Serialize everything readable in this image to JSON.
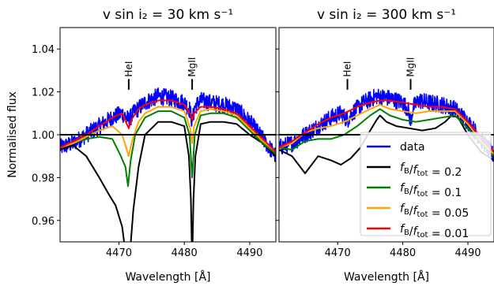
{
  "figure": {
    "ylabel": "Normalised flux",
    "xlabel": "Wavelength [Å]",
    "legend_placement": "lower-right"
  },
  "chart_data": [
    {
      "type": "line",
      "title": "v sin i₂ = 30 km s⁻¹",
      "xlabel": "Wavelength [Å]",
      "ylabel": "Normalised flux",
      "xlim": [
        4461,
        4494
      ],
      "ylim": [
        0.95,
        1.05
      ],
      "xticks": [
        4470,
        4480,
        4490
      ],
      "yticks": [
        0.96,
        0.98,
        1.0,
        1.02,
        1.04
      ],
      "reference_line": 1.0,
      "annotations": [
        {
          "text": "HeI",
          "x": 4471.5
        },
        {
          "text": "MgII",
          "x": 4481.2
        }
      ],
      "series": [
        {
          "name": "data",
          "color": "#0000ff",
          "x": [
            4461,
            4463,
            4465,
            4467,
            4469,
            4470.5,
            4471.5,
            4472.5,
            4474,
            4476,
            4478,
            4480,
            4480.8,
            4481.2,
            4481.6,
            4482.5,
            4484,
            4486,
            4488,
            4490,
            4492,
            4494
          ],
          "y": [
            0.994,
            0.996,
            1.0,
            1.004,
            1.008,
            1.01,
            1.007,
            1.011,
            1.015,
            1.018,
            1.017,
            1.015,
            1.012,
            1.006,
            1.013,
            1.016,
            1.015,
            1.014,
            1.012,
            1.006,
            0.998,
            0.99
          ]
        },
        {
          "name": "f_B/f_tot = 0.2",
          "color": "#000000",
          "x": [
            4461,
            4463,
            4465,
            4467,
            4468.5,
            4469.5,
            4470.5,
            4471,
            4471.3,
            4471.7,
            4472.2,
            4473,
            4474,
            4476,
            4478,
            4480,
            4480.7,
            4481.0,
            4481.2,
            4481.4,
            4481.7,
            4482.5,
            4484,
            4486,
            4488,
            4490,
            4492,
            4494
          ],
          "y": [
            0.993,
            0.995,
            0.99,
            0.98,
            0.972,
            0.967,
            0.957,
            0.945,
            0.93,
            0.945,
            0.965,
            0.985,
            1.0,
            1.006,
            1.006,
            1.004,
            0.99,
            0.97,
            0.94,
            0.97,
            0.99,
            1.005,
            1.006,
            1.006,
            1.005,
            1.0,
            0.996,
            0.99
          ]
        },
        {
          "name": "f_B/f_tot = 0.1",
          "color": "#008000",
          "x": [
            4461,
            4463,
            4465,
            4467,
            4469,
            4470.3,
            4471,
            4471.4,
            4471.8,
            4472.5,
            4474,
            4476,
            4478,
            4480,
            4480.8,
            4481.2,
            4481.6,
            4482.5,
            4484,
            4486,
            4488,
            4490,
            4492,
            4494
          ],
          "y": [
            0.994,
            0.996,
            0.998,
            0.999,
            0.998,
            0.99,
            0.985,
            0.976,
            0.988,
            1.0,
            1.008,
            1.011,
            1.011,
            1.008,
            1.0,
            0.98,
            1.0,
            1.009,
            1.01,
            1.01,
            1.008,
            1.002,
            0.996,
            0.991
          ]
        },
        {
          "name": "f_B/f_tot = 0.05",
          "color": "#ffa500",
          "x": [
            4461,
            4463,
            4465,
            4467,
            4469,
            4470.5,
            4471.1,
            4471.5,
            4472,
            4473,
            4474,
            4476,
            4478,
            4480,
            4480.9,
            4481.2,
            4481.5,
            4482.5,
            4484,
            4486,
            4488,
            4490,
            4492,
            4494
          ],
          "y": [
            0.994,
            0.996,
            0.999,
            1.002,
            1.004,
            1.0,
            0.994,
            0.99,
            0.997,
            1.006,
            1.01,
            1.013,
            1.013,
            1.011,
            1.003,
            0.996,
            1.004,
            1.011,
            1.012,
            1.011,
            1.009,
            1.003,
            0.997,
            0.992
          ]
        },
        {
          "name": "f_B/f_tot = 0.01",
          "color": "#ff0000",
          "x": [
            4461,
            4463,
            4465,
            4467,
            4469,
            4470.5,
            4471.2,
            4471.5,
            4471.9,
            4473,
            4474,
            4476,
            4478,
            4480,
            4480.9,
            4481.2,
            4481.5,
            4482.5,
            4484,
            4486,
            4488,
            4490,
            4492,
            4494
          ],
          "y": [
            0.994,
            0.997,
            1.0,
            1.004,
            1.008,
            1.01,
            1.005,
            1.003,
            1.007,
            1.012,
            1.014,
            1.016,
            1.016,
            1.014,
            1.01,
            1.007,
            1.01,
            1.013,
            1.013,
            1.012,
            1.01,
            1.004,
            0.998,
            0.992
          ]
        }
      ]
    },
    {
      "type": "line",
      "title": "v sin i₂ = 300 km s⁻¹",
      "xlabel": "Wavelength [Å]",
      "xlim": [
        4461,
        4494
      ],
      "ylim": [
        0.95,
        1.05
      ],
      "xticks": [
        4470,
        4480,
        4490
      ],
      "reference_line": 1.0,
      "annotations": [
        {
          "text": "HeI",
          "x": 4471.5
        },
        {
          "text": "MgII",
          "x": 4481.2
        }
      ],
      "series": [
        {
          "name": "data",
          "color": "#0000ff",
          "x": [
            4461,
            4463,
            4465,
            4467,
            4469,
            4470.5,
            4471.5,
            4472.5,
            4474,
            4476,
            4478,
            4480,
            4480.8,
            4481.2,
            4481.6,
            4482.5,
            4484,
            4486,
            4488,
            4490,
            4492,
            4494
          ],
          "y": [
            0.994,
            0.996,
            1.0,
            1.004,
            1.008,
            1.01,
            1.007,
            1.011,
            1.015,
            1.018,
            1.017,
            1.015,
            1.012,
            1.006,
            1.013,
            1.016,
            1.015,
            1.014,
            1.012,
            1.006,
            0.998,
            0.99
          ]
        },
        {
          "name": "f_B/f_tot = 0.2",
          "color": "#000000",
          "x": [
            4461,
            4463,
            4465,
            4467,
            4469,
            4470.5,
            4472,
            4473.5,
            4475,
            4476,
            4476.5,
            4477.5,
            4479,
            4481,
            4483,
            4485,
            4486.5,
            4487.5,
            4488.5,
            4490,
            4492,
            4494
          ],
          "y": [
            0.993,
            0.99,
            0.982,
            0.99,
            0.988,
            0.986,
            0.989,
            0.994,
            1.002,
            1.007,
            1.009,
            1.006,
            1.004,
            1.003,
            1.002,
            1.003,
            1.006,
            1.009,
            1.008,
            1.0,
            0.992,
            0.988
          ]
        },
        {
          "name": "f_B/f_tot = 0.1",
          "color": "#008000",
          "x": [
            4461,
            4463,
            4465,
            4467,
            4469,
            4471,
            4473,
            4475,
            4476.5,
            4478,
            4480,
            4482,
            4484,
            4486,
            4488,
            4490,
            4492,
            4494
          ],
          "y": [
            0.994,
            0.993,
            0.997,
            0.998,
            0.998,
            1.0,
            1.004,
            1.009,
            1.012,
            1.009,
            1.007,
            1.006,
            1.007,
            1.008,
            1.009,
            1.003,
            0.996,
            0.99
          ]
        },
        {
          "name": "f_B/f_tot = 0.05",
          "color": "#ffa500",
          "x": [
            4461,
            4463,
            4465,
            4467,
            4469,
            4471,
            4473,
            4475,
            4476.5,
            4478,
            4480,
            4482,
            4484,
            4486,
            4488,
            4490,
            4492,
            4494
          ],
          "y": [
            0.994,
            0.996,
            1.001,
            1.003,
            1.004,
            1.006,
            1.009,
            1.012,
            1.014,
            1.012,
            1.011,
            1.01,
            1.011,
            1.011,
            1.011,
            1.005,
            0.997,
            0.991
          ]
        },
        {
          "name": "f_B/f_tot = 0.01",
          "color": "#ff0000",
          "x": [
            4461,
            4463,
            4465,
            4467,
            4469,
            4471,
            4473,
            4475,
            4476.5,
            4478,
            4480,
            4482,
            4484,
            4486,
            4488,
            4490,
            4492,
            4494
          ],
          "y": [
            0.994,
            0.997,
            1.001,
            1.005,
            1.008,
            1.01,
            1.013,
            1.015,
            1.016,
            1.016,
            1.015,
            1.014,
            1.013,
            1.013,
            1.012,
            1.006,
            0.999,
            0.992
          ]
        }
      ]
    }
  ],
  "legend": [
    {
      "label": "data",
      "color": "#0000ff"
    },
    {
      "label": "f_B/f_tot = 0.2",
      "var": "f",
      "sub1": "B",
      "sub2": "tot",
      "value": "= 0.2",
      "color": "#000000"
    },
    {
      "label": "f_B/f_tot = 0.1",
      "var": "f",
      "sub1": "B",
      "sub2": "tot",
      "value": "= 0.1",
      "color": "#008000"
    },
    {
      "label": "f_B/f_tot = 0.05",
      "var": "f",
      "sub1": "B",
      "sub2": "tot",
      "value": "= 0.05",
      "color": "#ffa500"
    },
    {
      "label": "f_B/f_tot = 0.01",
      "var": "f",
      "sub1": "B",
      "sub2": "tot",
      "value": "= 0.01",
      "color": "#ff0000"
    }
  ]
}
